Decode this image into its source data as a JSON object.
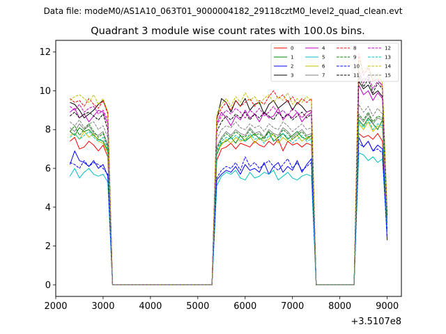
{
  "header": {
    "data_file": "Data file: modeM0/AS1A10_063T01_9000004182_29118cztM0_level2_quad_clean.evt"
  },
  "chart_data": {
    "type": "line",
    "title": "Quadrant 3 module wise count rates with 100.0s bins.",
    "xlabel": "",
    "ylabel": "",
    "x_offset_label": "+3.5107e8",
    "xlim": [
      2000,
      9300
    ],
    "ylim": [
      -0.6,
      12.6
    ],
    "x_ticks": [
      2000,
      3000,
      4000,
      5000,
      6000,
      7000,
      8000,
      9000
    ],
    "x_tick_labels": [
      "2000",
      "3000",
      "4000",
      "5000",
      "6000",
      "7000",
      "8000",
      "9000"
    ],
    "y_ticks": [
      0,
      2,
      4,
      6,
      8,
      10,
      12
    ],
    "y_tick_labels": [
      "0",
      "2",
      "4",
      "6",
      "8",
      "10",
      "12"
    ],
    "grid": false,
    "legend_placement": "top-right",
    "legend_columns": 4,
    "x": [
      2300,
      2400,
      2500,
      2600,
      2700,
      2800,
      2900,
      3000,
      3100,
      3200,
      3300,
      3400,
      3500,
      3600,
      3700,
      3800,
      3900,
      4000,
      4100,
      4200,
      4300,
      4400,
      4500,
      4600,
      4700,
      4800,
      4900,
      5000,
      5100,
      5200,
      5300,
      5400,
      5500,
      5600,
      5700,
      5800,
      5900,
      6000,
      6100,
      6200,
      6300,
      6400,
      6500,
      6600,
      6700,
      6800,
      6900,
      7000,
      7100,
      7200,
      7300,
      7400,
      7500,
      7600,
      7700,
      7800,
      7900,
      8000,
      8100,
      8200,
      8300,
      8400,
      8500,
      8600,
      8700,
      8800,
      8900,
      9000
    ],
    "series": [
      {
        "name": "0",
        "color": "#ff0000",
        "dash": "solid",
        "values": [
          7.4,
          7.6,
          7.0,
          7.1,
          7.4,
          7.2,
          6.9,
          7.2,
          6.6,
          0,
          0,
          0,
          0,
          0,
          0,
          0,
          0,
          0,
          0,
          0,
          0,
          0,
          0,
          0,
          0,
          0,
          0,
          0,
          0,
          0,
          0,
          6.4,
          7.0,
          7.1,
          7.3,
          7.0,
          7.3,
          7.2,
          7.1,
          7.4,
          7.2,
          7.1,
          7.4,
          7.2,
          7.5,
          6.9,
          7.4,
          7.2,
          7.3,
          7.1,
          7.3,
          7.2,
          0,
          0,
          0,
          0,
          0,
          0,
          0,
          0,
          0,
          7.8,
          7.6,
          7.7,
          7.5,
          7.8,
          7.4,
          2.8
        ]
      },
      {
        "name": "1",
        "color": "#008000",
        "dash": "solid",
        "values": [
          7.9,
          7.7,
          8.1,
          7.9,
          8.0,
          7.7,
          7.5,
          7.4,
          6.9,
          0,
          0,
          0,
          0,
          0,
          0,
          0,
          0,
          0,
          0,
          0,
          0,
          0,
          0,
          0,
          0,
          0,
          0,
          0,
          0,
          0,
          0,
          6.7,
          7.3,
          7.4,
          7.6,
          7.3,
          7.7,
          7.4,
          7.6,
          7.8,
          7.5,
          7.6,
          7.9,
          7.4,
          7.6,
          7.8,
          7.5,
          7.7,
          7.9,
          7.6,
          7.5,
          7.7,
          0,
          0,
          0,
          0,
          0,
          0,
          0,
          0,
          0,
          8.5,
          8.2,
          8.6,
          8.3,
          8.0,
          8.5,
          2.9
        ]
      },
      {
        "name": "2",
        "color": "#0000ff",
        "dash": "solid",
        "values": [
          6.2,
          6.9,
          6.4,
          6.3,
          6.1,
          6.4,
          6.0,
          6.2,
          5.6,
          0,
          0,
          0,
          0,
          0,
          0,
          0,
          0,
          0,
          0,
          0,
          0,
          0,
          0,
          0,
          0,
          0,
          0,
          0,
          0,
          0,
          0,
          5.4,
          5.7,
          5.9,
          5.8,
          6.1,
          5.7,
          6.2,
          5.9,
          6.0,
          5.8,
          6.3,
          5.7,
          6.1,
          6.3,
          5.8,
          6.1,
          5.9,
          6.4,
          5.8,
          6.2,
          6.5,
          0,
          0,
          0,
          0,
          0,
          0,
          0,
          0,
          0,
          7.6,
          7.1,
          7.4,
          6.9,
          7.2,
          7.0,
          2.3
        ]
      },
      {
        "name": "3",
        "color": "#000000",
        "dash": "solid",
        "values": [
          9.4,
          9.3,
          9.0,
          8.6,
          8.8,
          9.0,
          9.3,
          9.5,
          8.9,
          0,
          0,
          0,
          0,
          0,
          0,
          0,
          0,
          0,
          0,
          0,
          0,
          0,
          0,
          0,
          0,
          0,
          0,
          0,
          0,
          0,
          0,
          8.5,
          9.6,
          9.4,
          8.9,
          9.5,
          9.2,
          9.6,
          9.0,
          9.3,
          9.4,
          8.8,
          9.3,
          9.5,
          9.1,
          9.3,
          9.5,
          9.0,
          9.4,
          9.2,
          8.9,
          9.0,
          0,
          0,
          0,
          0,
          0,
          0,
          0,
          0,
          0,
          10.5,
          10.1,
          10.3,
          9.8,
          10.0,
          9.7,
          3.5
        ]
      },
      {
        "name": "4",
        "color": "#bf00bf",
        "dash": "solid",
        "values": [
          8.9,
          9.1,
          8.6,
          8.8,
          8.4,
          8.7,
          9.0,
          8.9,
          8.3,
          0,
          0,
          0,
          0,
          0,
          0,
          0,
          0,
          0,
          0,
          0,
          0,
          0,
          0,
          0,
          0,
          0,
          0,
          0,
          0,
          0,
          0,
          8.3,
          8.9,
          8.6,
          8.2,
          8.7,
          8.5,
          9.0,
          8.6,
          8.8,
          8.4,
          8.9,
          8.6,
          8.7,
          9.1,
          8.5,
          8.8,
          8.6,
          8.9,
          8.4,
          8.7,
          8.9,
          0,
          0,
          0,
          0,
          0,
          0,
          0,
          0,
          0,
          10.3,
          9.8,
          10.0,
          9.5,
          9.9,
          9.6,
          3.4
        ]
      },
      {
        "name": "5",
        "color": "#00bfbf",
        "dash": "solid",
        "values": [
          5.6,
          6.0,
          5.5,
          5.8,
          6.0,
          5.7,
          5.6,
          5.7,
          5.3,
          0,
          0,
          0,
          0,
          0,
          0,
          0,
          0,
          0,
          0,
          0,
          0,
          0,
          0,
          0,
          0,
          0,
          0,
          0,
          0,
          0,
          0,
          5.1,
          5.6,
          5.8,
          5.7,
          5.9,
          5.5,
          5.4,
          5.8,
          5.5,
          5.6,
          5.8,
          5.7,
          5.9,
          5.4,
          5.6,
          5.8,
          5.5,
          5.4,
          5.6,
          5.7,
          5.6,
          0,
          0,
          0,
          0,
          0,
          0,
          0,
          0,
          0,
          6.8,
          6.7,
          6.4,
          6.6,
          6.3,
          6.5,
          2.5
        ]
      },
      {
        "name": "6",
        "color": "#bfbf00",
        "dash": "solid",
        "values": [
          7.7,
          7.8,
          7.5,
          7.9,
          7.6,
          7.8,
          7.4,
          7.3,
          6.8,
          0,
          0,
          0,
          0,
          0,
          0,
          0,
          0,
          0,
          0,
          0,
          0,
          0,
          0,
          0,
          0,
          0,
          0,
          0,
          0,
          0,
          0,
          6.9,
          7.2,
          7.5,
          7.3,
          7.6,
          7.4,
          7.5,
          7.7,
          7.3,
          7.6,
          7.4,
          7.5,
          7.8,
          7.3,
          7.6,
          7.4,
          7.5,
          7.7,
          7.4,
          7.6,
          7.5,
          0,
          0,
          0,
          0,
          0,
          0,
          0,
          0,
          0,
          8.3,
          8.0,
          8.4,
          7.9,
          8.2,
          8.1,
          3.0
        ]
      },
      {
        "name": "7",
        "color": "#808080",
        "dash": "solid",
        "values": [
          8.1,
          7.9,
          8.3,
          8.0,
          8.2,
          7.8,
          7.7,
          7.9,
          7.2,
          0,
          0,
          0,
          0,
          0,
          0,
          0,
          0,
          0,
          0,
          0,
          0,
          0,
          0,
          0,
          0,
          0,
          0,
          0,
          0,
          0,
          0,
          7.1,
          7.6,
          7.9,
          7.7,
          8.0,
          7.8,
          7.7,
          8.1,
          7.8,
          7.9,
          7.6,
          8.0,
          7.8,
          7.7,
          8.1,
          7.9,
          7.6,
          7.8,
          8.0,
          7.7,
          7.8,
          0,
          0,
          0,
          0,
          0,
          0,
          0,
          0,
          0,
          8.7,
          8.4,
          8.8,
          8.3,
          8.6,
          8.5,
          3.1
        ]
      },
      {
        "name": "8",
        "color": "#ff0000",
        "dash": "dashed",
        "values": [
          9.6,
          9.4,
          9.5,
          9.2,
          9.6,
          9.3,
          9.1,
          9.5,
          8.8,
          0,
          0,
          0,
          0,
          0,
          0,
          0,
          0,
          0,
          0,
          0,
          0,
          0,
          0,
          0,
          0,
          0,
          0,
          0,
          0,
          0,
          0,
          8.6,
          9.1,
          9.4,
          9.0,
          9.5,
          9.2,
          9.4,
          9.6,
          9.2,
          9.5,
          9.3,
          9.7,
          10.0,
          9.6,
          9.8,
          9.4,
          9.7,
          9.3,
          9.6,
          9.4,
          9.6,
          0,
          0,
          0,
          0,
          0,
          0,
          0,
          0,
          0,
          11.9,
          10.8,
          11.2,
          10.5,
          10.6,
          10.2,
          3.7
        ]
      },
      {
        "name": "9",
        "color": "#008000",
        "dash": "dashed",
        "values": [
          7.9,
          8.2,
          7.7,
          8.0,
          8.3,
          7.9,
          7.6,
          7.8,
          7.1,
          0,
          0,
          0,
          0,
          0,
          0,
          0,
          0,
          0,
          0,
          0,
          0,
          0,
          0,
          0,
          0,
          0,
          0,
          0,
          0,
          0,
          0,
          7.0,
          7.5,
          7.8,
          7.6,
          7.9,
          7.7,
          7.6,
          8.0,
          7.7,
          7.8,
          7.5,
          7.9,
          7.7,
          7.6,
          8.0,
          7.8,
          7.5,
          7.7,
          7.9,
          7.6,
          7.7,
          0,
          0,
          0,
          0,
          0,
          0,
          0,
          0,
          0,
          8.8,
          8.5,
          8.9,
          8.4,
          8.7,
          8.6,
          3.1
        ]
      },
      {
        "name": "10",
        "color": "#0000ff",
        "dash": "dashed",
        "values": [
          6.3,
          6.2,
          6.0,
          6.4,
          6.1,
          6.3,
          6.2,
          6.0,
          5.7,
          0,
          0,
          0,
          0,
          0,
          0,
          0,
          0,
          0,
          0,
          0,
          0,
          0,
          0,
          0,
          0,
          0,
          0,
          0,
          0,
          0,
          0,
          5.5,
          5.9,
          6.1,
          6.0,
          6.3,
          5.9,
          6.6,
          6.1,
          6.3,
          6.0,
          6.2,
          6.4,
          6.1,
          5.9,
          6.2,
          6.5,
          6.0,
          6.3,
          5.9,
          6.1,
          6.3,
          0,
          0,
          0,
          0,
          0,
          0,
          0,
          0,
          0,
          7.3,
          7.1,
          7.4,
          6.9,
          7.0,
          6.8,
          2.4
        ]
      },
      {
        "name": "11",
        "color": "#000000",
        "dash": "dashed",
        "values": [
          8.7,
          8.9,
          8.6,
          8.8,
          8.9,
          8.7,
          8.5,
          8.8,
          8.0,
          0,
          0,
          0,
          0,
          0,
          0,
          0,
          0,
          0,
          0,
          0,
          0,
          0,
          0,
          0,
          0,
          0,
          0,
          0,
          0,
          0,
          0,
          7.9,
          8.4,
          8.7,
          8.5,
          8.8,
          8.6,
          8.9,
          8.5,
          8.8,
          8.6,
          8.9,
          8.7,
          8.5,
          8.9,
          8.6,
          8.8,
          8.5,
          8.7,
          8.9,
          8.6,
          8.8,
          0,
          0,
          0,
          0,
          0,
          0,
          0,
          0,
          0,
          10.8,
          10.2,
          10.6,
          9.9,
          10.4,
          10.1,
          3.6
        ]
      },
      {
        "name": "12",
        "color": "#bf00bf",
        "dash": "dashed",
        "values": [
          9.2,
          9.0,
          9.3,
          8.9,
          9.1,
          9.2,
          8.8,
          9.0,
          8.5,
          0,
          0,
          0,
          0,
          0,
          0,
          0,
          0,
          0,
          0,
          0,
          0,
          0,
          0,
          0,
          0,
          0,
          0,
          0,
          0,
          0,
          0,
          8.2,
          8.7,
          9.0,
          8.8,
          9.1,
          8.9,
          8.6,
          9.0,
          8.8,
          9.1,
          8.7,
          8.9,
          9.2,
          8.8,
          9.0,
          8.7,
          9.1,
          8.9,
          8.6,
          8.9,
          9.0,
          0,
          0,
          0,
          0,
          0,
          0,
          0,
          0,
          0,
          11.0,
          10.4,
          10.8,
          10.1,
          10.5,
          10.3,
          3.6
        ]
      },
      {
        "name": "13",
        "color": "#00bfbf",
        "dash": "dashed",
        "values": [
          7.6,
          7.8,
          7.5,
          7.7,
          7.9,
          7.6,
          7.4,
          7.6,
          7.0,
          0,
          0,
          0,
          0,
          0,
          0,
          0,
          0,
          0,
          0,
          0,
          0,
          0,
          0,
          0,
          0,
          0,
          0,
          0,
          0,
          0,
          0,
          6.9,
          7.4,
          7.6,
          7.5,
          7.7,
          7.5,
          7.4,
          7.8,
          7.5,
          7.6,
          7.3,
          7.7,
          7.5,
          7.4,
          7.8,
          7.6,
          7.3,
          7.5,
          7.7,
          7.4,
          7.5,
          0,
          0,
          0,
          0,
          0,
          0,
          0,
          0,
          0,
          8.4,
          8.1,
          8.5,
          8.0,
          8.3,
          8.2,
          3.0
        ]
      },
      {
        "name": "14",
        "color": "#bfbf00",
        "dash": "dashed",
        "values": [
          9.5,
          9.7,
          9.8,
          9.6,
          9.4,
          9.8,
          9.3,
          9.6,
          8.9,
          0,
          0,
          0,
          0,
          0,
          0,
          0,
          0,
          0,
          0,
          0,
          0,
          0,
          0,
          0,
          0,
          0,
          0,
          0,
          0,
          0,
          0,
          8.8,
          9.3,
          9.6,
          9.2,
          9.7,
          9.4,
          9.9,
          9.5,
          9.7,
          9.3,
          9.6,
          9.8,
          9.4,
          9.7,
          9.5,
          9.9,
          9.3,
          9.6,
          9.4,
          9.7,
          9.5,
          0,
          0,
          0,
          0,
          0,
          0,
          0,
          0,
          0,
          11.6,
          11.0,
          11.3,
          10.6,
          10.9,
          10.4,
          3.8
        ]
      },
      {
        "name": "15",
        "color": "#808080",
        "dash": "dashed",
        "values": [
          8.4,
          8.2,
          8.5,
          8.1,
          8.3,
          8.4,
          8.0,
          8.2,
          7.6,
          0,
          0,
          0,
          0,
          0,
          0,
          0,
          0,
          0,
          0,
          0,
          0,
          0,
          0,
          0,
          0,
          0,
          0,
          0,
          0,
          0,
          0,
          7.5,
          8.0,
          8.2,
          8.1,
          8.4,
          8.1,
          8.0,
          8.3,
          8.1,
          8.2,
          7.9,
          8.3,
          8.1,
          8.0,
          8.4,
          8.2,
          7.9,
          8.1,
          8.3,
          8.0,
          8.1,
          0,
          0,
          0,
          0,
          0,
          0,
          0,
          0,
          0,
          9.3,
          8.9,
          9.2,
          8.7,
          9.1,
          8.8,
          3.3
        ]
      }
    ]
  }
}
